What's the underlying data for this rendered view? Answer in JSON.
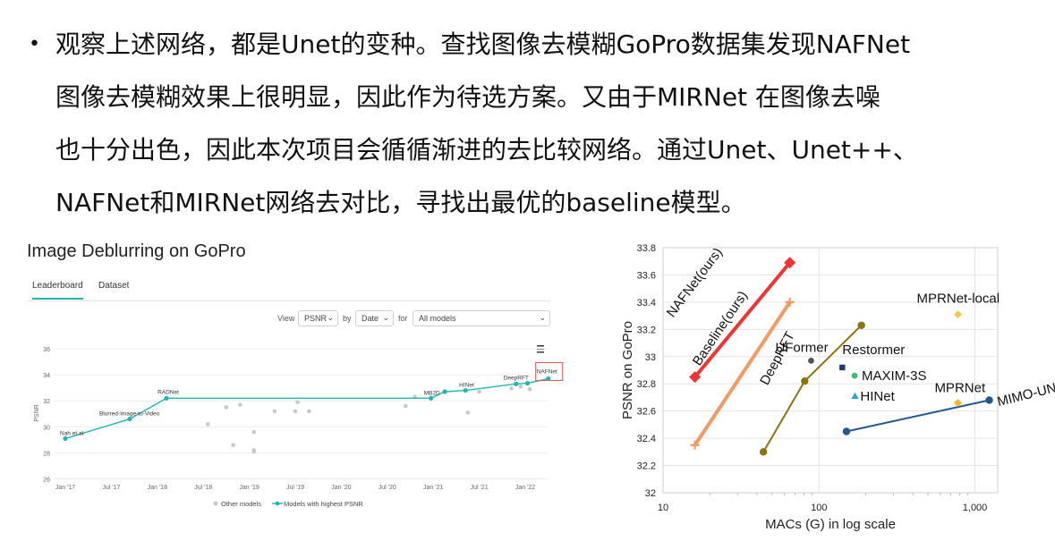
{
  "paragraph": {
    "bullet": "•",
    "lines": [
      "观察上述网络，都是Unet的变种。查找图像去模糊GoPro数据集发现NAFNet",
      "图像去模糊效果上很明显，因此作为待选方案。又由于MIRNet 在图像去噪",
      "也十分出色，因此本次项目会循循渐进的去比较网络。通过Unet、Unet++、",
      "NAFNet和MIRNet网络去对比，寻找出最优的baseline模型。"
    ]
  },
  "leaderboard": {
    "title": "Image Deblurring on GoPro",
    "tabs": [
      "Leaderboard",
      "Dataset"
    ],
    "controls": {
      "view_label": "View",
      "view_value": "PSNR",
      "by_label": "by",
      "by_value": "Date",
      "for_label": "for",
      "for_value": "All models",
      "menu_icon": "hamburger-menu-icon"
    },
    "colors": {
      "accent": "#21b6b0",
      "other": "#c9c9c9",
      "highlight_box": "#e05555"
    }
  },
  "chart_data": [
    {
      "type": "scatter",
      "title": "",
      "xlabel": "",
      "ylabel": "PSNR",
      "ylim": [
        26,
        36
      ],
      "yticks": [
        26,
        28,
        30,
        32,
        34,
        36
      ],
      "xticks": [
        "Jan '17",
        "Jul '17",
        "Jan '18",
        "Jul '18",
        "Jan '19",
        "Jul '19",
        "Jan '20",
        "Jul '20",
        "Jan '21",
        "Jul '21",
        "Jan '22"
      ],
      "legend": [
        "Other models",
        "Models with highest PSNR"
      ],
      "legend_position": "bottom",
      "series": [
        {
          "name": "Models with highest PSNR",
          "points": [
            {
              "x": 0.0,
              "y": 29.1,
              "label": "Nah et al"
            },
            {
              "x": 1.4,
              "y": 30.6,
              "label": "Blurred-Image-to-Video"
            },
            {
              "x": 2.2,
              "y": 32.2,
              "label": "RADNet"
            },
            {
              "x": 7.95,
              "y": 32.2,
              "label": "MB2D"
            },
            {
              "x": 8.25,
              "y": 32.7,
              "label": ""
            },
            {
              "x": 8.7,
              "y": 32.8,
              "label": "HINet"
            },
            {
              "x": 9.8,
              "y": 33.3,
              "label": "DeepRFT"
            },
            {
              "x": 10.05,
              "y": 33.35,
              "label": ""
            },
            {
              "x": 10.5,
              "y": 33.7,
              "label": "NAFNet"
            }
          ]
        },
        {
          "name": "Other models",
          "points": [
            {
              "x": 3.1,
              "y": 30.2
            },
            {
              "x": 3.5,
              "y": 31.5
            },
            {
              "x": 3.65,
              "y": 28.6
            },
            {
              "x": 3.8,
              "y": 31.7
            },
            {
              "x": 4.1,
              "y": 29.6
            },
            {
              "x": 4.1,
              "y": 28.2
            },
            {
              "x": 4.1,
              "y": 28.1
            },
            {
              "x": 4.55,
              "y": 31.2
            },
            {
              "x": 5.0,
              "y": 31.2
            },
            {
              "x": 5.05,
              "y": 31.9
            },
            {
              "x": 5.3,
              "y": 31.2
            },
            {
              "x": 7.4,
              "y": 31.6
            },
            {
              "x": 7.6,
              "y": 32.3
            },
            {
              "x": 8.75,
              "y": 31.1
            },
            {
              "x": 9.0,
              "y": 32.7
            },
            {
              "x": 9.7,
              "y": 32.95
            },
            {
              "x": 9.9,
              "y": 33.1
            },
            {
              "x": 10.1,
              "y": 32.9
            }
          ]
        }
      ]
    },
    {
      "type": "scatter",
      "title": "",
      "xlabel": "MACs (G) in log scale",
      "ylabel": "PSNR on GoPro",
      "xscale": "log",
      "xlim": [
        10,
        1400
      ],
      "ylim": [
        32,
        33.8
      ],
      "xticks": [
        10,
        100,
        1000
      ],
      "xtick_labels": [
        "10",
        "100",
        "1,000"
      ],
      "yticks": [
        32,
        32.2,
        32.4,
        32.6,
        32.8,
        33,
        33.2,
        33.4,
        33.6,
        33.8
      ],
      "grid": true,
      "lines": [
        {
          "name": "NAFNet(ours)",
          "color": "#f03434",
          "marker": "diamond",
          "x": [
            16,
            65
          ],
          "y": [
            32.85,
            33.69
          ]
        },
        {
          "name": "Baseline(ours)",
          "color": "#f39a62",
          "marker": "plus",
          "x": [
            16,
            65
          ],
          "y": [
            32.35,
            33.4
          ]
        },
        {
          "name": "DeepRFT",
          "color": "#8c7412",
          "marker": "circle",
          "x": [
            44,
            81,
            187
          ],
          "y": [
            32.3,
            32.82,
            33.23
          ]
        },
        {
          "name": "MIMO-UNet",
          "color": "#23578f",
          "marker": "circle",
          "x": [
            150,
            1235
          ],
          "y": [
            32.45,
            32.68
          ]
        }
      ],
      "points": [
        {
          "name": "UFormer",
          "x": 89,
          "y": 32.97,
          "color": "#555555",
          "marker": "circle"
        },
        {
          "name": "Restormer",
          "x": 141,
          "y": 32.92,
          "color": "#1f3a6e",
          "marker": "square"
        },
        {
          "name": "MAXIM-3S",
          "x": 169,
          "y": 32.86,
          "color": "#3cbf6a",
          "marker": "circle"
        },
        {
          "name": "HINet",
          "x": 170,
          "y": 32.71,
          "color": "#2e9fe0",
          "marker": "triangle"
        },
        {
          "name": "MPRNet",
          "x": 777,
          "y": 32.66,
          "color": "#f2b233",
          "marker": "diamond"
        },
        {
          "name": "MPRNet-local",
          "x": 778,
          "y": 33.31,
          "color": "#f2c94c",
          "marker": "diamond"
        }
      ]
    }
  ]
}
